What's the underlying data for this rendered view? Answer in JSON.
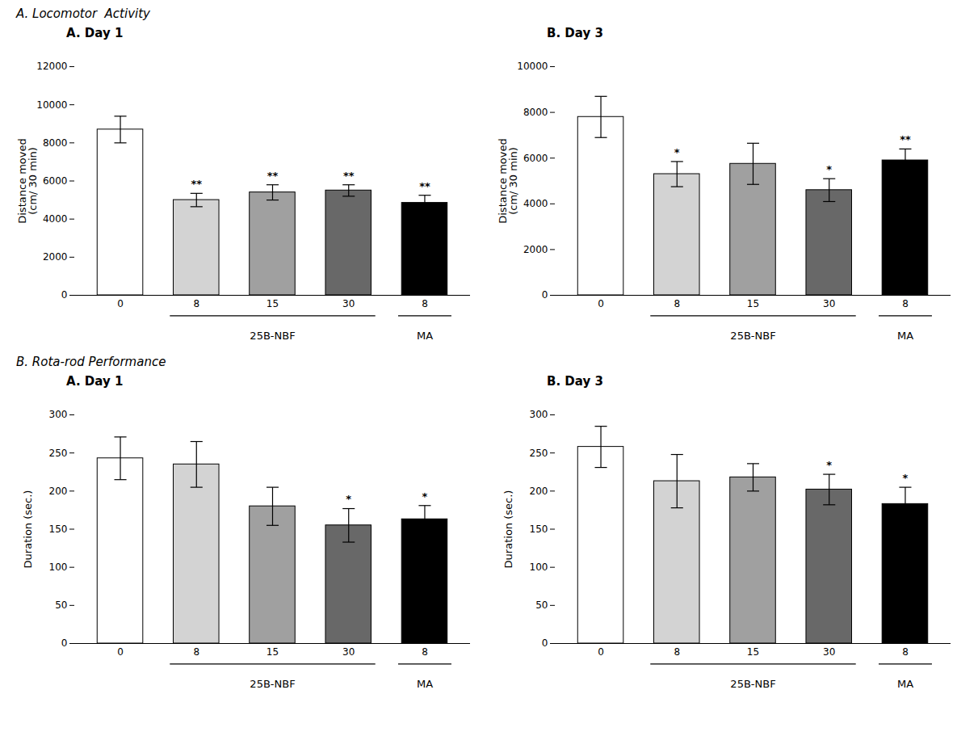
{
  "chart_data": [
    {
      "type": "bar",
      "subtitle": "A. Locomotor  Activity",
      "title": "A. Day 1",
      "categories": [
        "0",
        "8",
        "15",
        "30",
        "8"
      ],
      "values": [
        8700,
        5000,
        5400,
        5500,
        4850
      ],
      "errors": [
        700,
        350,
        400,
        300,
        400
      ],
      "significance": [
        null,
        "**",
        "**",
        "**",
        "**"
      ],
      "colors": [
        "#ffffff",
        "#d3d3d3",
        "#a0a0a0",
        "#686868",
        "#000000"
      ],
      "ylabel": "Distance moved\n(cm/ 30 min)",
      "ylim": [
        0,
        12000
      ],
      "yticks": [
        0,
        2000,
        4000,
        6000,
        8000,
        10000,
        12000
      ],
      "annotations": [
        "25B-NBF",
        "MA"
      ]
    },
    {
      "type": "bar",
      "title": "B. Day 3",
      "categories": [
        "0",
        "8",
        "15",
        "30",
        "8"
      ],
      "values": [
        7800,
        5300,
        5750,
        4600,
        5900
      ],
      "errors": [
        900,
        550,
        900,
        500,
        500
      ],
      "significance": [
        null,
        "*",
        null,
        "*",
        "**"
      ],
      "colors": [
        "#ffffff",
        "#d3d3d3",
        "#a0a0a0",
        "#686868",
        "#000000"
      ],
      "ylabel": "Distance moved\n(cm/ 30 min)",
      "ylim": [
        0,
        10000
      ],
      "yticks": [
        0,
        2000,
        4000,
        6000,
        8000,
        10000
      ],
      "annotations": [
        "25B-NBF",
        "MA"
      ]
    },
    {
      "type": "bar",
      "subtitle": "B. Rota-rod Performance",
      "title": "A. Day 1",
      "categories": [
        "0",
        "8",
        "15",
        "30",
        "8"
      ],
      "values": [
        243,
        235,
        180,
        155,
        163
      ],
      "errors": [
        28,
        30,
        25,
        22,
        18
      ],
      "significance": [
        null,
        null,
        null,
        "*",
        "*"
      ],
      "colors": [
        "#ffffff",
        "#d3d3d3",
        "#a0a0a0",
        "#686868",
        "#000000"
      ],
      "ylabel": "Duration (sec.)",
      "ylim": [
        0,
        300
      ],
      "yticks": [
        0,
        50,
        100,
        150,
        200,
        250,
        300
      ],
      "annotations": [
        "25B-NBF",
        "MA"
      ]
    },
    {
      "type": "bar",
      "title": "B. Day 3",
      "categories": [
        "0",
        "8",
        "15",
        "30",
        "8"
      ],
      "values": [
        258,
        213,
        218,
        202,
        183
      ],
      "errors": [
        27,
        35,
        18,
        20,
        22
      ],
      "significance": [
        null,
        null,
        null,
        "*",
        "*"
      ],
      "colors": [
        "#ffffff",
        "#d3d3d3",
        "#a0a0a0",
        "#686868",
        "#000000"
      ],
      "ylabel": "Duration (sec.)",
      "ylim": [
        0,
        300
      ],
      "yticks": [
        0,
        50,
        100,
        150,
        200,
        250,
        300
      ],
      "annotations": [
        "25B-NBF",
        "MA"
      ]
    }
  ]
}
